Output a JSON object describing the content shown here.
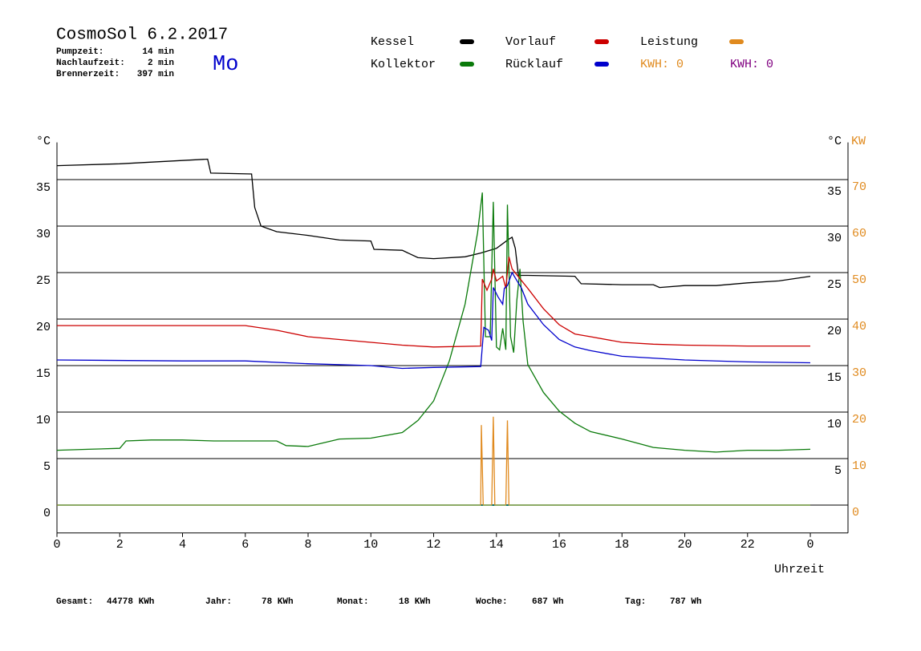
{
  "header": {
    "title": "CosmoSol 6.2.2017",
    "day": "Mo",
    "stats": [
      {
        "label": "Pumpzeit:",
        "value": "14 min"
      },
      {
        "label": "Nachlaufzeit:",
        "value": "2 min"
      },
      {
        "label": "Brennerzeit:",
        "value": "397 min"
      }
    ]
  },
  "footer": [
    {
      "label": "Gesamt:",
      "value": "44778 KWh"
    },
    {
      "label": "Jahr:",
      "value": "78 KWh"
    },
    {
      "label": "Monat:",
      "value": "18 KWh"
    },
    {
      "label": "Woche:",
      "value": "687 Wh"
    },
    {
      "label": "Tag:",
      "value": "787 Wh"
    }
  ],
  "chart_data": {
    "type": "line",
    "y_label": "°C",
    "y2_label_unit": "°C",
    "y2_label": "KW",
    "x_label": "Uhrzeit",
    "xlim": [
      0,
      25.2
    ],
    "xticks": [
      0,
      2,
      4,
      6,
      8,
      10,
      12,
      14,
      16,
      18,
      20,
      22,
      {
        "value": 24,
        "label": "0"
      }
    ],
    "ylim": [
      -3,
      39
    ],
    "yticks": [
      0,
      5,
      10,
      15,
      20,
      25,
      30,
      35
    ],
    "y2lim": [
      -6,
      78
    ],
    "y2ticks": [
      0,
      10,
      20,
      30,
      40,
      50,
      60,
      70
    ],
    "y2_color": "#e08a1e",
    "grid": true,
    "series": [
      {
        "name": "Kessel",
        "color": "#000000",
        "x": [
          0,
          2,
          4.8,
          4.9,
          6.2,
          6.3,
          6.5,
          7,
          8,
          9,
          10,
          10.1,
          11,
          11.5,
          12,
          13,
          13.5,
          14,
          14.4,
          14.5,
          14.6,
          14.7,
          15,
          16.5,
          16.7,
          18,
          19,
          19.2,
          20,
          21,
          22,
          23,
          24
        ],
        "values": [
          36.5,
          36.7,
          37.2,
          35.7,
          35.6,
          32,
          30,
          29.4,
          29.0,
          28.5,
          28.4,
          27.5,
          27.4,
          26.6,
          26.5,
          26.7,
          27.1,
          27.6,
          28.6,
          28.8,
          27.6,
          24.7,
          24.7,
          24.6,
          23.8,
          23.7,
          23.7,
          23.4,
          23.6,
          23.6,
          23.9,
          24.1,
          24.6
        ]
      },
      {
        "name": "Kollektor",
        "color": "#0a7a0a",
        "x": [
          0,
          1,
          2,
          2.2,
          3,
          4,
          5,
          7,
          7.3,
          8,
          9,
          10,
          11,
          11.5,
          12,
          12.5,
          13,
          13.4,
          13.55,
          13.65,
          13.8,
          13.9,
          14.0,
          14.1,
          14.2,
          14.3,
          14.35,
          14.45,
          14.55,
          14.65,
          14.75,
          14.85,
          15,
          15.5,
          16,
          16.5,
          17,
          18,
          19,
          20,
          21,
          22,
          23,
          24
        ],
        "values": [
          5.9,
          6.0,
          6.1,
          6.9,
          7.0,
          7.0,
          6.9,
          6.9,
          6.4,
          6.3,
          7.1,
          7.2,
          7.8,
          9.1,
          11.2,
          15.5,
          21.6,
          29.3,
          33.6,
          18.1,
          18.1,
          32.6,
          17.0,
          16.7,
          19.0,
          16.7,
          32.3,
          18.1,
          16.4,
          22.0,
          25.4,
          19.8,
          15.1,
          12.1,
          10.1,
          8.8,
          7.9,
          7.1,
          6.2,
          5.9,
          5.7,
          5.9,
          5.9,
          6.0
        ]
      },
      {
        "name": "Vorlauf",
        "color": "#cc0000",
        "x": [
          0,
          6,
          7,
          8,
          10,
          11,
          12,
          13.5,
          13.55,
          13.7,
          13.85,
          13.9,
          14.0,
          14.2,
          14.3,
          14.4,
          14.5,
          15,
          15.5,
          16,
          16.5,
          17,
          18,
          19,
          20,
          22,
          24
        ],
        "values": [
          19.3,
          19.3,
          18.8,
          18.1,
          17.5,
          17.2,
          17.0,
          17.1,
          24.3,
          23.1,
          24.3,
          25.4,
          24.1,
          24.6,
          23.3,
          26.7,
          25.4,
          23.3,
          21.1,
          19.4,
          18.4,
          18.1,
          17.5,
          17.3,
          17.2,
          17.1,
          17.1
        ]
      },
      {
        "name": "Rücklauf",
        "color": "#0000cc",
        "x": [
          0,
          4,
          6,
          8,
          10,
          11,
          12,
          13.5,
          13.6,
          13.75,
          13.85,
          13.9,
          14.05,
          14.2,
          14.25,
          14.35,
          14.5,
          14.8,
          15,
          15.5,
          16,
          16.5,
          17,
          18,
          20,
          22,
          24
        ],
        "values": [
          15.6,
          15.5,
          15.5,
          15.2,
          15.0,
          14.7,
          14.8,
          14.9,
          19.1,
          18.8,
          17.7,
          23.4,
          22.4,
          21.6,
          23.3,
          23.6,
          25.0,
          23.3,
          21.6,
          19.4,
          17.8,
          17.0,
          16.6,
          16.0,
          15.6,
          15.4,
          15.3
        ]
      },
      {
        "name": "Leistung",
        "color": "#e08a1e",
        "axis": "y2",
        "x": [
          0,
          13.5,
          13.52,
          13.58,
          13.85,
          13.9,
          13.95,
          14.3,
          14.35,
          14.4,
          24
        ],
        "values": [
          0,
          0,
          17.2,
          0,
          0,
          19,
          0,
          0,
          18.2,
          0,
          0
        ]
      }
    ],
    "kwh_labels": [
      {
        "text": "KWH: 0",
        "color": "#e08a1e"
      },
      {
        "text": "KWH: 0",
        "color": "#800080"
      }
    ]
  }
}
